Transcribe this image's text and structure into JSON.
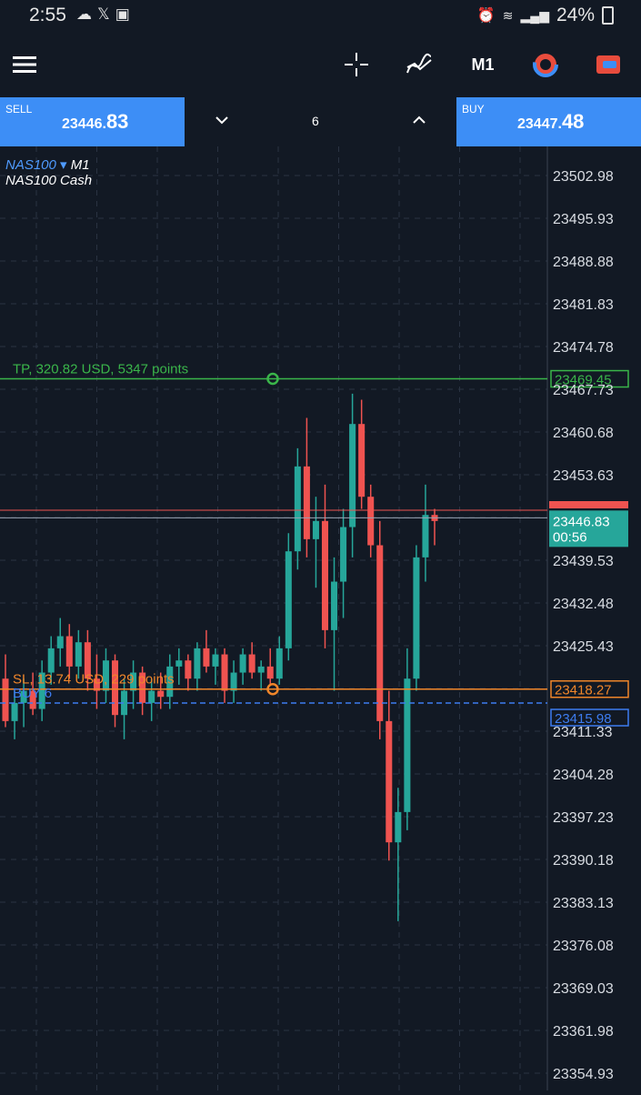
{
  "status_bar": {
    "time": "2:55",
    "battery": "24%",
    "icons": [
      "sync-icon",
      "x-icon",
      "image-icon",
      "alarm-icon",
      "wifi-icon",
      "signal-icon",
      "signal-icon",
      "battery-icon"
    ]
  },
  "toolbar": {
    "timeframe": "M1",
    "icons": [
      "menu-icon",
      "crosshair-icon",
      "indicators-icon",
      "timeframe",
      "tradingview-icon",
      "trade-icon"
    ]
  },
  "trade_panel": {
    "sell": {
      "label": "SELL",
      "price_main": "23446.",
      "price_big": "83"
    },
    "buy": {
      "label": "BUY",
      "price_main": "23447.",
      "price_big": "48"
    },
    "lots": "6"
  },
  "symbol": {
    "ticker": "NAS100",
    "timeframe": "M1",
    "description": "NAS100 Cash"
  },
  "price_axis": {
    "labels": [
      "23502.98",
      "23495.93",
      "23488.88",
      "23481.83",
      "23474.78",
      "23467.73",
      "23460.68",
      "23453.63",
      "23439.53",
      "23432.48",
      "23425.43",
      "23411.33",
      "23404.28",
      "23397.23",
      "23390.18",
      "23383.13",
      "23376.08",
      "23369.03",
      "23361.98",
      "23354.93"
    ]
  },
  "levels": {
    "tp": {
      "text": "TP, 320.82 USD, 5347 points",
      "price_tag": "23469.45",
      "color": "#3ab54a"
    },
    "sl": {
      "text": "SL, 13.74 USD, 229 points",
      "price_tag": "23418.27",
      "color": "#f0862a"
    },
    "entry": {
      "text": "BUY 6",
      "price_tag": "23415.98",
      "color": "#3d7cf0"
    },
    "bid": {
      "price_tag": "23446.83",
      "timer": "00:56",
      "color": "#26a69a"
    },
    "ask": {
      "price_tag": "23447.48",
      "color": "#ef5350"
    }
  },
  "chart_data": {
    "type": "candlestick",
    "symbol": "NAS100",
    "timeframe": "M1",
    "ylim": [
      23350,
      23510
    ],
    "up_color": "#26a69a",
    "down_color": "#ef5350",
    "candles": [
      [
        23420,
        23424,
        23412,
        23413
      ],
      [
        23413,
        23418,
        23410,
        23416
      ],
      [
        23416,
        23420,
        23412,
        23418
      ],
      [
        23418,
        23421,
        23414,
        23415
      ],
      [
        23415,
        23423,
        23413,
        23421
      ],
      [
        23421,
        23427,
        23419,
        23425
      ],
      [
        23425,
        23430,
        23422,
        23427
      ],
      [
        23427,
        23429,
        23420,
        23422
      ],
      [
        23422,
        23428,
        23420,
        23426
      ],
      [
        23426,
        23428,
        23418,
        23420
      ],
      [
        23420,
        23424,
        23415,
        23418
      ],
      [
        23418,
        23425,
        23416,
        23423
      ],
      [
        23423,
        23424,
        23412,
        23414
      ],
      [
        23414,
        23420,
        23410,
        23418
      ],
      [
        23418,
        23423,
        23415,
        23421
      ],
      [
        23421,
        23422,
        23414,
        23416
      ],
      [
        23416,
        23420,
        23413,
        23418
      ],
      [
        23418,
        23421,
        23415,
        23417
      ],
      [
        23417,
        23424,
        23415,
        23422
      ],
      [
        23422,
        23425,
        23419,
        23423
      ],
      [
        23423,
        23424,
        23418,
        23420
      ],
      [
        23420,
        23426,
        23418,
        23425
      ],
      [
        23425,
        23428,
        23421,
        23422
      ],
      [
        23422,
        23425,
        23419,
        23424
      ],
      [
        23424,
        23425,
        23416,
        23418
      ],
      [
        23418,
        23423,
        23416,
        23421
      ],
      [
        23421,
        23425,
        23419,
        23424
      ],
      [
        23424,
        23426,
        23420,
        23421
      ],
      [
        23421,
        23423,
        23418,
        23422
      ],
      [
        23422,
        23425,
        23419,
        23420
      ],
      [
        23420,
        23427,
        23419,
        23425
      ],
      [
        23425,
        23444,
        23423,
        23441
      ],
      [
        23441,
        23458,
        23438,
        23455
      ],
      [
        23455,
        23463,
        23440,
        23443
      ],
      [
        23443,
        23450,
        23435,
        23446
      ],
      [
        23446,
        23452,
        23425,
        23428
      ],
      [
        23428,
        23440,
        23418,
        23436
      ],
      [
        23436,
        23448,
        23430,
        23445
      ],
      [
        23445,
        23467,
        23440,
        23462
      ],
      [
        23462,
        23466,
        23448,
        23450
      ],
      [
        23450,
        23452,
        23440,
        23442
      ],
      [
        23442,
        23446,
        23410,
        23413
      ],
      [
        23413,
        23418,
        23390,
        23393
      ],
      [
        23393,
        23402,
        23380,
        23398
      ],
      [
        23398,
        23425,
        23395,
        23420
      ],
      [
        23420,
        23442,
        23418,
        23440
      ],
      [
        23440,
        23452,
        23436,
        23447
      ],
      [
        23447,
        23448,
        23442,
        23446
      ]
    ]
  }
}
